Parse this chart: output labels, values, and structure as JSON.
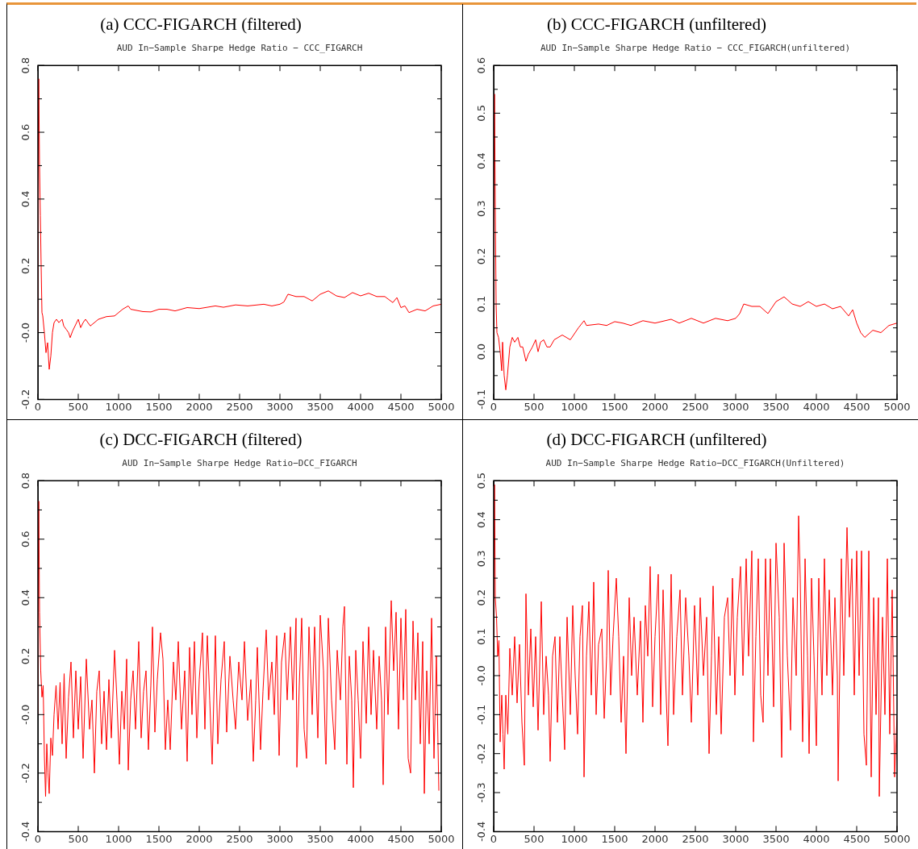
{
  "chart_data": [
    {
      "type": "line",
      "title": "(a) CCC-FIGARCH (filtered)",
      "subtitle": "AUD In−Sample Sharpe Hedge Ratio − CCC_FIGARCH",
      "x": [
        0,
        10,
        20,
        30,
        40,
        50,
        60,
        80,
        100,
        120,
        140,
        160,
        180,
        200,
        230,
        260,
        300,
        320,
        350,
        380,
        400,
        430,
        500,
        530,
        560,
        590,
        650,
        700,
        750,
        850,
        950,
        1050,
        1120,
        1150,
        1300,
        1400,
        1500,
        1600,
        1700,
        1850,
        2000,
        2200,
        2300,
        2450,
        2600,
        2800,
        2900,
        3000,
        3050,
        3100,
        3200,
        3300,
        3400,
        3500,
        3600,
        3700,
        3800,
        3900,
        4000,
        4100,
        4200,
        4300,
        4400,
        4450,
        4500,
        4550,
        4600,
        4700,
        4800,
        4900,
        5000
      ],
      "series": [
        {
          "color": "#ff0000",
          "values": [
            0.0,
            0.76,
            0.5,
            0.35,
            0.2,
            0.06,
            0.05,
            0.0,
            -0.06,
            -0.03,
            -0.11,
            -0.07,
            0.0,
            0.03,
            0.04,
            0.03,
            0.04,
            0.02,
            0.01,
            0.0,
            -0.015,
            0.005,
            0.04,
            0.015,
            0.03,
            0.04,
            0.02,
            0.03,
            0.04,
            0.048,
            0.05,
            0.07,
            0.08,
            0.07,
            0.063,
            0.062,
            0.07,
            0.07,
            0.065,
            0.075,
            0.072,
            0.08,
            0.076,
            0.083,
            0.08,
            0.085,
            0.08,
            0.085,
            0.092,
            0.115,
            0.108,
            0.108,
            0.095,
            0.115,
            0.125,
            0.11,
            0.105,
            0.12,
            0.11,
            0.118,
            0.108,
            0.108,
            0.09,
            0.105,
            0.075,
            0.08,
            0.06,
            0.07,
            0.065,
            0.08,
            0.085
          ]
        }
      ],
      "xlim": [
        0,
        5000
      ],
      "xticks": [
        0,
        500,
        1000,
        1500,
        2000,
        2500,
        3000,
        3500,
        4000,
        4500,
        5000
      ],
      "ylim": [
        -0.2,
        0.8
      ],
      "yticks": [
        -0.2,
        {
          "value": -0.1,
          "label": null
        },
        {
          "value": 0,
          "label": "-0.0"
        },
        {
          "value": 0.1,
          "label": null
        },
        0.2,
        {
          "value": 0.3,
          "label": null
        },
        0.4,
        {
          "value": 0.5,
          "label": null
        },
        0.6,
        {
          "value": 0.7,
          "label": null
        },
        0.8
      ]
    },
    {
      "type": "line",
      "title": "(b) CCC-FIGARCH (unfiltered)",
      "subtitle": "AUD In−Sample Sharpe Hedge Ratio − CCC_FIGARCH(unfiltered)",
      "x": [
        0,
        10,
        20,
        30,
        40,
        60,
        80,
        100,
        110,
        130,
        150,
        170,
        200,
        230,
        260,
        300,
        330,
        360,
        400,
        430,
        480,
        520,
        550,
        580,
        620,
        660,
        700,
        750,
        850,
        950,
        1050,
        1120,
        1150,
        1300,
        1400,
        1500,
        1600,
        1700,
        1850,
        2000,
        2200,
        2300,
        2450,
        2600,
        2750,
        2900,
        3000,
        3050,
        3100,
        3200,
        3300,
        3400,
        3500,
        3600,
        3700,
        3800,
        3900,
        4000,
        4100,
        4200,
        4300,
        4400,
        4450,
        4500,
        4550,
        4600,
        4700,
        4800,
        4900,
        5000
      ],
      "series": [
        {
          "color": "#ff0000",
          "values": [
            0.0,
            0.54,
            0.3,
            0.1,
            0.04,
            0.03,
            0.0,
            -0.04,
            0.02,
            -0.05,
            -0.08,
            -0.05,
            0.01,
            0.03,
            0.02,
            0.03,
            0.01,
            0.01,
            -0.02,
            -0.005,
            0.01,
            0.025,
            0.0,
            0.02,
            0.025,
            0.01,
            0.01,
            0.025,
            0.035,
            0.025,
            0.05,
            0.065,
            0.055,
            0.058,
            0.055,
            0.063,
            0.06,
            0.055,
            0.065,
            0.06,
            0.068,
            0.06,
            0.07,
            0.06,
            0.07,
            0.065,
            0.07,
            0.08,
            0.1,
            0.095,
            0.095,
            0.08,
            0.105,
            0.115,
            0.1,
            0.095,
            0.105,
            0.095,
            0.1,
            0.09,
            0.095,
            0.075,
            0.088,
            0.06,
            0.04,
            0.03,
            0.045,
            0.04,
            0.055,
            0.06
          ]
        }
      ],
      "xlim": [
        0,
        5000
      ],
      "xticks": [
        0,
        500,
        1000,
        1500,
        2000,
        2500,
        3000,
        3500,
        4000,
        4500,
        5000
      ],
      "ylim": [
        -0.1,
        0.6
      ],
      "yticks": [
        -0.1,
        {
          "value": -0.05,
          "label": null
        },
        {
          "value": 0,
          "label": "0.0"
        },
        {
          "value": 0.05,
          "label": null
        },
        0.1,
        {
          "value": 0.15,
          "label": null
        },
        0.2,
        {
          "value": 0.25,
          "label": null
        },
        0.3,
        {
          "value": 0.35,
          "label": null
        },
        0.4,
        {
          "value": 0.45,
          "label": null
        },
        0.5,
        {
          "value": 0.55,
          "label": null
        },
        0.6
      ]
    },
    {
      "type": "line",
      "title": "(c) DCC-FIGARCH (filtered)",
      "subtitle": "AUD In−Sample Sharpe Hedge Ratio−DCC_FIGARCH",
      "x": [
        0,
        10,
        20,
        35,
        50,
        65,
        80,
        95,
        110,
        125,
        140,
        160,
        180,
        200,
        225,
        250,
        275,
        300,
        325,
        350,
        380,
        410,
        440,
        470,
        500,
        530,
        560,
        600,
        640,
        670,
        700,
        730,
        760,
        790,
        820,
        850,
        880,
        910,
        950,
        980,
        1010,
        1040,
        1070,
        1100,
        1120,
        1150,
        1180,
        1210,
        1250,
        1280,
        1310,
        1340,
        1370,
        1400,
        1420,
        1450,
        1480,
        1520,
        1550,
        1580,
        1610,
        1640,
        1680,
        1710,
        1740,
        1780,
        1820,
        1850,
        1880,
        1910,
        1940,
        1970,
        2000,
        2040,
        2070,
        2100,
        2130,
        2160,
        2200,
        2230,
        2270,
        2310,
        2340,
        2380,
        2420,
        2450,
        2490,
        2530,
        2560,
        2600,
        2640,
        2670,
        2700,
        2720,
        2760,
        2790,
        2830,
        2860,
        2900,
        2930,
        2960,
        2990,
        3020,
        3060,
        3090,
        3130,
        3160,
        3200,
        3210,
        3240,
        3270,
        3300,
        3330,
        3360,
        3400,
        3430,
        3470,
        3500,
        3540,
        3570,
        3600,
        3640,
        3680,
        3710,
        3750,
        3780,
        3800,
        3830,
        3860,
        3890,
        3910,
        3940,
        3970,
        4000,
        4030,
        4070,
        4100,
        4130,
        4160,
        4200,
        4230,
        4260,
        4280,
        4310,
        4340,
        4380,
        4410,
        4440,
        4470,
        4500,
        4530,
        4560,
        4590,
        4620,
        4650,
        4680,
        4710,
        4740,
        4770,
        4790,
        4820,
        4850,
        4880,
        4910,
        4940,
        4970
      ],
      "series": [
        {
          "color": "#ff0000",
          "values": [
            0.0,
            0.73,
            0.35,
            0.15,
            0.06,
            0.1,
            -0.14,
            -0.28,
            -0.1,
            -0.2,
            -0.27,
            -0.08,
            -0.14,
            0.0,
            0.1,
            -0.05,
            0.11,
            -0.1,
            0.14,
            -0.15,
            0.06,
            0.18,
            -0.08,
            0.15,
            -0.05,
            0.13,
            -0.15,
            0.19,
            -0.05,
            0.05,
            -0.2,
            0.08,
            0.15,
            -0.1,
            0.08,
            -0.12,
            0.12,
            -0.08,
            0.22,
            0.05,
            -0.17,
            0.08,
            -0.05,
            0.19,
            -0.19,
            0.05,
            0.15,
            -0.05,
            0.25,
            -0.08,
            0.08,
            0.15,
            -0.12,
            0.1,
            0.3,
            -0.06,
            0.12,
            0.28,
            0.19,
            -0.12,
            0.05,
            -0.12,
            0.18,
            0.05,
            0.25,
            -0.05,
            0.15,
            -0.16,
            0.23,
            0.0,
            0.25,
            -0.08,
            0.12,
            0.28,
            -0.05,
            0.27,
            0.05,
            -0.17,
            0.27,
            -0.1,
            0.12,
            0.25,
            -0.06,
            0.2,
            0.05,
            -0.05,
            0.18,
            0.05,
            0.25,
            -0.02,
            0.12,
            -0.16,
            0.05,
            0.23,
            -0.12,
            0.08,
            0.29,
            0.05,
            0.18,
            0.0,
            0.27,
            -0.14,
            0.18,
            0.28,
            0.05,
            0.3,
            0.05,
            0.33,
            -0.18,
            0.1,
            0.33,
            -0.05,
            -0.15,
            0.3,
            0.0,
            0.3,
            -0.08,
            0.34,
            0.15,
            -0.17,
            0.33,
            0.05,
            -0.12,
            0.22,
            0.05,
            0.3,
            0.37,
            -0.17,
            0.2,
            0.05,
            -0.25,
            0.22,
            0.05,
            -0.15,
            0.25,
            -0.03,
            0.3,
            0.0,
            0.22,
            -0.05,
            0.2,
            0.05,
            -0.24,
            0.3,
            0.0,
            0.39,
            0.15,
            0.35,
            -0.05,
            0.33,
            0.05,
            0.36,
            -0.15,
            -0.2,
            0.32,
            0.05,
            0.28,
            -0.1,
            0.25,
            -0.27,
            0.15,
            -0.1,
            0.33,
            -0.15,
            0.2,
            -0.26
          ]
        }
      ],
      "xlim": [
        0,
        5000
      ],
      "xticks": [
        0,
        500,
        1000,
        1500,
        2000,
        2500,
        3000,
        3500,
        4000,
        4500,
        5000
      ],
      "ylim": [
        -0.4,
        0.8
      ],
      "yticks": [
        -0.4,
        {
          "value": -0.3,
          "label": null
        },
        -0.2,
        {
          "value": -0.1,
          "label": null
        },
        {
          "value": 0,
          "label": "-0.0"
        },
        {
          "value": 0.1,
          "label": null
        },
        0.2,
        {
          "value": 0.3,
          "label": null
        },
        0.4,
        {
          "value": 0.5,
          "label": null
        },
        0.6,
        {
          "value": 0.7,
          "label": null
        },
        0.8
      ]
    },
    {
      "type": "line",
      "title": "(d) DCC-FIGARCH (unfiltered)",
      "subtitle": "AUD In−Sample Sharpe Hedge Ratio−DCC_FIGARCH(Unfiltered)",
      "x": [
        0,
        10,
        20,
        35,
        50,
        65,
        80,
        100,
        115,
        130,
        150,
        175,
        200,
        230,
        260,
        290,
        320,
        350,
        380,
        400,
        430,
        460,
        490,
        520,
        550,
        590,
        620,
        650,
        680,
        700,
        730,
        760,
        790,
        820,
        850,
        880,
        910,
        950,
        980,
        1010,
        1040,
        1070,
        1100,
        1120,
        1150,
        1180,
        1210,
        1240,
        1270,
        1300,
        1340,
        1370,
        1400,
        1420,
        1450,
        1480,
        1520,
        1550,
        1580,
        1610,
        1640,
        1680,
        1710,
        1740,
        1780,
        1820,
        1850,
        1880,
        1910,
        1940,
        1970,
        2000,
        2040,
        2070,
        2100,
        2130,
        2160,
        2200,
        2230,
        2270,
        2310,
        2340,
        2380,
        2420,
        2450,
        2490,
        2530,
        2560,
        2600,
        2640,
        2670,
        2700,
        2720,
        2760,
        2790,
        2820,
        2860,
        2900,
        2930,
        2960,
        2990,
        3020,
        3060,
        3090,
        3130,
        3160,
        3200,
        3220,
        3250,
        3280,
        3310,
        3340,
        3370,
        3400,
        3430,
        3470,
        3500,
        3540,
        3570,
        3600,
        3640,
        3680,
        3710,
        3750,
        3780,
        3800,
        3830,
        3860,
        3890,
        3910,
        3940,
        3970,
        4000,
        4030,
        4070,
        4100,
        4130,
        4160,
        4200,
        4230,
        4260,
        4270,
        4310,
        4340,
        4380,
        4410,
        4440,
        4470,
        4500,
        4530,
        4560,
        4590,
        4620,
        4650,
        4680,
        4710,
        4740,
        4770,
        4780,
        4820,
        4850,
        4880,
        4910,
        4940,
        4970,
        5000
      ],
      "series": [
        {
          "color": "#ff0000",
          "values": [
            0.0,
            0.49,
            0.2,
            0.15,
            0.05,
            0.09,
            -0.17,
            -0.05,
            -0.15,
            -0.24,
            -0.05,
            -0.15,
            0.07,
            -0.05,
            0.1,
            -0.07,
            0.08,
            -0.12,
            -0.23,
            0.21,
            -0.05,
            0.12,
            -0.08,
            0.1,
            -0.14,
            0.19,
            -0.1,
            0.05,
            -0.05,
            -0.22,
            0.05,
            0.1,
            -0.12,
            0.1,
            -0.05,
            -0.19,
            0.15,
            -0.1,
            0.18,
            0.0,
            -0.15,
            0.1,
            0.18,
            -0.26,
            0.05,
            0.19,
            -0.05,
            0.24,
            -0.1,
            0.08,
            0.12,
            -0.11,
            0.05,
            0.27,
            -0.05,
            0.1,
            0.25,
            0.1,
            -0.12,
            0.05,
            -0.2,
            0.2,
            0.0,
            0.15,
            -0.05,
            0.14,
            -0.12,
            0.18,
            0.05,
            0.28,
            -0.08,
            0.1,
            0.26,
            -0.1,
            0.22,
            0.0,
            -0.18,
            0.26,
            -0.1,
            0.1,
            0.22,
            -0.05,
            0.2,
            0.05,
            -0.12,
            0.18,
            -0.05,
            0.2,
            0.0,
            0.15,
            -0.2,
            0.05,
            0.23,
            -0.1,
            0.1,
            -0.15,
            0.15,
            0.2,
            0.0,
            0.25,
            -0.05,
            0.15,
            0.28,
            0.0,
            0.3,
            0.05,
            0.32,
            -0.17,
            0.1,
            0.3,
            -0.05,
            -0.12,
            0.3,
            0.0,
            0.3,
            -0.08,
            0.34,
            0.15,
            -0.21,
            0.34,
            0.05,
            -0.14,
            0.2,
            0.0,
            0.41,
            0.25,
            -0.17,
            0.3,
            0.05,
            -0.2,
            0.25,
            0.05,
            -0.18,
            0.25,
            -0.05,
            0.3,
            0.0,
            0.22,
            -0.05,
            0.2,
            0.0,
            -0.27,
            0.3,
            0.0,
            0.38,
            0.15,
            0.3,
            -0.05,
            0.32,
            0.0,
            0.32,
            -0.15,
            -0.23,
            0.32,
            -0.26,
            0.2,
            -0.1,
            0.2,
            -0.31,
            0.15,
            -0.1,
            0.3,
            -0.15,
            0.22,
            -0.26,
            -0.1
          ]
        }
      ],
      "xlim": [
        0,
        5000
      ],
      "xticks": [
        0,
        500,
        1000,
        1500,
        2000,
        2500,
        3000,
        3500,
        4000,
        4500,
        5000
      ],
      "ylim": [
        -0.4,
        0.5
      ],
      "yticks": [
        -0.4,
        {
          "value": -0.35,
          "label": null
        },
        -0.3,
        {
          "value": -0.25,
          "label": null
        },
        -0.2,
        {
          "value": -0.15,
          "label": null
        },
        -0.1,
        {
          "value": -0.05,
          "label": null
        },
        {
          "value": 0,
          "label": "-0.0"
        },
        {
          "value": 0.05,
          "label": null
        },
        0.1,
        {
          "value": 0.15,
          "label": null
        },
        0.2,
        {
          "value": 0.25,
          "label": null
        },
        0.3,
        {
          "value": 0.35,
          "label": null
        },
        0.4,
        {
          "value": 0.45,
          "label": null
        },
        0.5
      ]
    }
  ]
}
